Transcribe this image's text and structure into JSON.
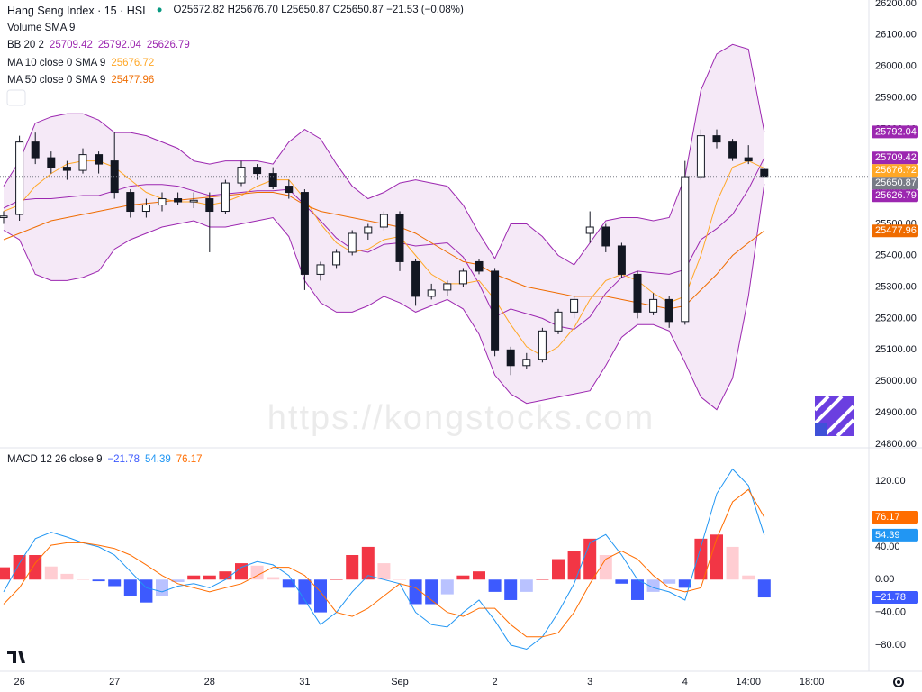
{
  "header": {
    "title": "Hang Seng Index · 15 · HSI",
    "ohlc": "O25672.82 H25676.70 L25650.87 C25650.87 −21.53 (−0.08%)",
    "volume": "Volume SMA 9"
  },
  "watermark": "https://kongstocks.com",
  "chart_data": [
    {
      "type": "candlestick",
      "categories": [
        null,
        "26",
        null,
        null,
        null,
        null,
        null,
        "27",
        null,
        null,
        null,
        null,
        null,
        "28",
        null,
        null,
        null,
        null,
        null,
        "31",
        null,
        null,
        null,
        null,
        null,
        "Sep",
        null,
        null,
        null,
        null,
        null,
        "2",
        null,
        null,
        null,
        null,
        null,
        "3",
        null,
        null,
        null,
        null,
        null,
        "4",
        null,
        null,
        null,
        "14:00",
        null,
        null,
        null,
        "18:00"
      ],
      "open": [
        25520,
        25530,
        25760,
        25710,
        25680,
        25670,
        25720,
        25700,
        25600,
        25540,
        25560,
        25580,
        25570,
        25580,
        25540,
        25630,
        25680,
        25660,
        25620,
        25600,
        25340,
        25370,
        25410,
        25470,
        25490,
        25530,
        25380,
        25270,
        25290,
        25310,
        25380,
        25350,
        25100,
        25050,
        25070,
        25160,
        25220,
        25470,
        25490,
        25430,
        25340,
        25220,
        25260,
        25190,
        25650,
        25780,
        25760,
        25710,
        25672.82,
        null,
        null,
        null
      ],
      "high": [
        25540,
        25780,
        25790,
        25730,
        25700,
        25740,
        25730,
        25790,
        25610,
        25580,
        25600,
        25600,
        25600,
        25600,
        25640,
        25700,
        25690,
        25680,
        25640,
        25610,
        25380,
        25420,
        25480,
        25500,
        25540,
        25540,
        25390,
        25310,
        25320,
        25360,
        25390,
        25360,
        25110,
        25090,
        25170,
        25230,
        25270,
        25540,
        25500,
        25440,
        25350,
        25280,
        25270,
        25700,
        25800,
        25800,
        25770,
        25750,
        25676.7,
        null,
        null,
        null
      ],
      "low": [
        25500,
        25510,
        25690,
        25660,
        25640,
        25660,
        25660,
        25580,
        25520,
        25520,
        25540,
        25560,
        25550,
        25410,
        25530,
        25620,
        25640,
        25610,
        25580,
        25290,
        25320,
        25360,
        25400,
        25450,
        25480,
        25350,
        25240,
        25260,
        25270,
        25300,
        25340,
        25080,
        25020,
        25040,
        25060,
        25150,
        25200,
        25440,
        25410,
        25330,
        25200,
        25210,
        25170,
        25180,
        25640,
        25740,
        25700,
        25690,
        25650.87,
        null,
        null,
        null
      ],
      "close": [
        25525,
        25760,
        25710,
        25680,
        25670,
        25720,
        25690,
        25600,
        25540,
        25560,
        25580,
        25570,
        25575,
        25540,
        25630,
        25680,
        25660,
        25620,
        25600,
        25340,
        25370,
        25410,
        25470,
        25490,
        25530,
        25380,
        25270,
        25290,
        25310,
        25350,
        25350,
        25100,
        25050,
        25070,
        25160,
        25220,
        25260,
        25490,
        25430,
        25340,
        25220,
        25260,
        25190,
        25650,
        25780,
        25760,
        25710,
        25700,
        25650.87,
        null,
        null,
        null
      ],
      "close_label": "25650.87",
      "up_color": "#ffffff",
      "down_color": "#131722",
      "label_color": "#787b86",
      "bollinger": {
        "name": "BB 20 2",
        "color": "#9c27b0",
        "bands": [
          {
            "values": [
              25550,
              25575,
              25580,
              25580,
              25585,
              25590,
              25590,
              25605,
              25620,
              25625,
              25625,
              25620,
              25605,
              25590,
              25595,
              25600,
              25605,
              25605,
              25610,
              25560,
              25510,
              25455,
              25420,
              25410,
              25435,
              25440,
              25430,
              25435,
              25440,
              25395,
              25310,
              25205,
              25230,
              25215,
              25200,
              25175,
              25165,
              25205,
              25280,
              25330,
              25350,
              25345,
              25340,
              25355,
              25450,
              25485,
              25530,
              25610,
              25709.42,
              null,
              null,
              null
            ],
            "last_value_label": "25709.42"
          },
          {
            "values": [
              25620,
              25700,
              25820,
              25840,
              25850,
              25850,
              25830,
              25790,
              25790,
              25780,
              25760,
              25740,
              25700,
              25690,
              25700,
              25700,
              25700,
              25690,
              25760,
              25800,
              25770,
              25690,
              25620,
              25580,
              25600,
              25630,
              25640,
              25630,
              25620,
              25560,
              25470,
              25390,
              25500,
              25500,
              25460,
              25400,
              25370,
              25440,
              25510,
              25520,
              25520,
              25510,
              25520,
              25650,
              25925,
              26040,
              26070,
              26055,
              25792.04,
              null,
              null,
              null
            ],
            "last_value_label": "25792.04"
          },
          {
            "values": [
              25480,
              25450,
              25340,
              25320,
              25320,
              25330,
              25350,
              25420,
              25450,
              25470,
              25490,
              25500,
              25510,
              25490,
              25490,
              25500,
              25510,
              25520,
              25460,
              25320,
              25250,
              25220,
              25220,
              25240,
              25270,
              25250,
              25220,
              25240,
              25260,
              25230,
              25150,
              25020,
              24960,
              24930,
              24940,
              24950,
              24960,
              24970,
              25050,
              25140,
              25180,
              25180,
              25160,
              25060,
              24950,
              24910,
              25010,
              25270,
              25626.79,
              null,
              null,
              null
            ],
            "last_value_label": "25626.79"
          }
        ]
      },
      "series": [
        {
          "name": "MA 10 close 0 SMA 9",
          "color": "#ffa726",
          "values": [
            25540,
            25560,
            25620,
            25660,
            25690,
            25700,
            25700,
            25680,
            25640,
            25600,
            25580,
            25570,
            25570,
            25560,
            25570,
            25590,
            25620,
            25640,
            25640,
            25580,
            25500,
            25440,
            25410,
            25420,
            25450,
            25460,
            25400,
            25340,
            25310,
            25310,
            25320,
            25260,
            25180,
            25110,
            25080,
            25110,
            25170,
            25260,
            25320,
            25340,
            25320,
            25280,
            25250,
            25270,
            25400,
            25570,
            25680,
            25700,
            25676.72,
            null,
            null,
            null
          ],
          "last_value_label": "25676.72"
        },
        {
          "name": "MA 50 close 0 SMA 9",
          "color": "#ef6c00",
          "values": [
            25450,
            25470,
            25490,
            25510,
            25520,
            25530,
            25540,
            25550,
            25560,
            25565,
            25570,
            25575,
            25580,
            25585,
            25590,
            25595,
            25600,
            25600,
            25590,
            25560,
            25540,
            25530,
            25520,
            25510,
            25500,
            25490,
            25470,
            25440,
            25410,
            25380,
            25370,
            25340,
            25320,
            25300,
            25290,
            25280,
            25270,
            25270,
            25270,
            25260,
            25250,
            25240,
            25230,
            25240,
            25290,
            25340,
            25400,
            25440,
            25477.96,
            null,
            null,
            null
          ],
          "last_value_label": "25477.96"
        }
      ],
      "ylim": [
        24789,
        26211
      ],
      "yticks": [
        {
          "value": 24800,
          "label": "24800.00"
        },
        {
          "value": 24900,
          "label": "24900.00"
        },
        {
          "value": 25000,
          "label": "25000.00"
        },
        {
          "value": 25100,
          "label": "25100.00"
        },
        {
          "value": 25200,
          "label": "25200.00"
        },
        {
          "value": 25300,
          "label": "25300.00"
        },
        {
          "value": 25400,
          "label": "25400.00"
        },
        {
          "value": 25500,
          "label": "25500.00"
        },
        {
          "value": 25600,
          "label": "25600.00"
        },
        {
          "value": 25700,
          "label": "25700.00"
        },
        {
          "value": 25800,
          "label": "25800.00"
        },
        {
          "value": 25900,
          "label": "25900.00"
        },
        {
          "value": 26000,
          "label": "26000.00"
        },
        {
          "value": 26100,
          "label": "26100.00"
        },
        {
          "value": 26200,
          "label": "26200.00"
        }
      ],
      "grid": false
    },
    {
      "type": "macd",
      "name": "MACD 12 26 close 9",
      "histogram": {
        "values": [
          15,
          30,
          30,
          16,
          7,
          0,
          -2,
          -8,
          -20,
          -28,
          -20,
          -3,
          5,
          5,
          10,
          20,
          17,
          3,
          -10,
          -30,
          -40,
          0,
          30,
          40,
          20,
          0,
          -30,
          -30,
          -18,
          5,
          10,
          -15,
          -25,
          -15,
          0,
          25,
          35,
          50,
          30,
          -5,
          -25,
          -15,
          -5,
          -10,
          50,
          55,
          40,
          5,
          -21.78,
          null,
          null,
          null
        ],
        "last_value_label": "−21.78",
        "colors": {
          "pos_up": "#f23645",
          "pos_down": "#ffcdd2",
          "neg_down": "#3d5afe",
          "neg_up": "#b9c2ff"
        },
        "label_color": "#3d5afe"
      },
      "series": [
        {
          "color": "#2196f3",
          "values": [
            -15,
            20,
            50,
            58,
            52,
            45,
            40,
            30,
            10,
            -10,
            -15,
            -8,
            -5,
            -10,
            0,
            15,
            22,
            18,
            5,
            -25,
            -55,
            -40,
            -15,
            5,
            0,
            -5,
            -40,
            -55,
            -58,
            -40,
            -25,
            -50,
            -80,
            -85,
            -70,
            -40,
            -5,
            45,
            55,
            30,
            0,
            -10,
            -15,
            -25,
            40,
            105,
            135,
            115,
            54.39,
            null,
            null,
            null
          ],
          "last_value_label": "54.39"
        },
        {
          "color": "#ff6d00",
          "values": [
            -30,
            -10,
            20,
            42,
            45,
            45,
            42,
            38,
            30,
            18,
            5,
            -5,
            -10,
            -15,
            -10,
            -5,
            5,
            15,
            15,
            5,
            -15,
            -40,
            -45,
            -35,
            -20,
            -5,
            -10,
            -25,
            -40,
            -45,
            -35,
            -35,
            -55,
            -70,
            -70,
            -65,
            -40,
            -5,
            25,
            35,
            25,
            5,
            -10,
            -15,
            -10,
            50,
            95,
            110,
            76.17,
            null,
            null,
            null
          ],
          "last_value_label": "76.17"
        }
      ],
      "ylim": [
        -112,
        161
      ],
      "yticks": [
        {
          "value": -80,
          "label": "−80.00"
        },
        {
          "value": -40,
          "label": "−40.00"
        },
        {
          "value": 0,
          "label": "0.00"
        },
        {
          "value": 40,
          "label": "40.00"
        },
        {
          "value": 120,
          "label": "120.00"
        }
      ],
      "grid": false
    }
  ]
}
